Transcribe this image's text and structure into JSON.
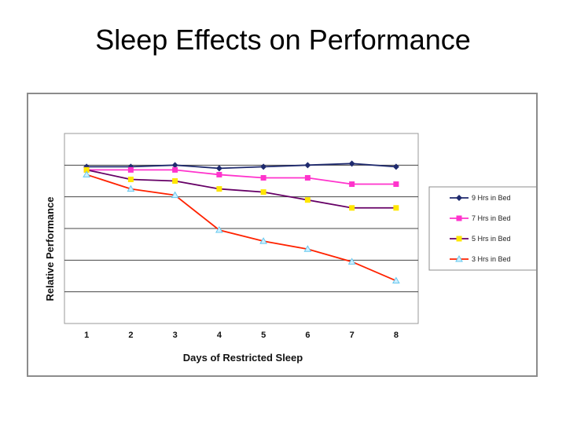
{
  "slide": {
    "title": "Sleep Effects on Performance"
  },
  "chart_data": {
    "type": "line",
    "title": "",
    "xlabel": "Days of Restricted Sleep",
    "ylabel": "Relative Performance",
    "x": [
      1,
      2,
      3,
      4,
      5,
      6,
      7,
      8
    ],
    "ylim": [
      0,
      6
    ],
    "grid": "horizontal",
    "legend_position": "right",
    "series": [
      {
        "name": "9 Hrs in Bed",
        "color": "#1f2a6e",
        "marker": "diamond",
        "values": [
          4.95,
          4.95,
          5.0,
          4.9,
          4.95,
          5.0,
          5.05,
          4.95
        ]
      },
      {
        "name": "7 Hrs in Bed",
        "color": "#ff33cc",
        "marker": "square",
        "values": [
          4.85,
          4.85,
          4.85,
          4.7,
          4.6,
          4.6,
          4.4,
          4.4
        ]
      },
      {
        "name": "5 Hrs in Bed",
        "color": "#660066",
        "marker": "square-yellow",
        "values": [
          4.85,
          4.55,
          4.5,
          4.25,
          4.15,
          3.9,
          3.65,
          3.65
        ]
      },
      {
        "name": "3 Hrs in Bed",
        "color": "#ff2200",
        "marker": "triangle",
        "values": [
          4.7,
          4.25,
          4.05,
          2.95,
          2.6,
          2.35,
          1.95,
          1.35
        ]
      }
    ]
  }
}
